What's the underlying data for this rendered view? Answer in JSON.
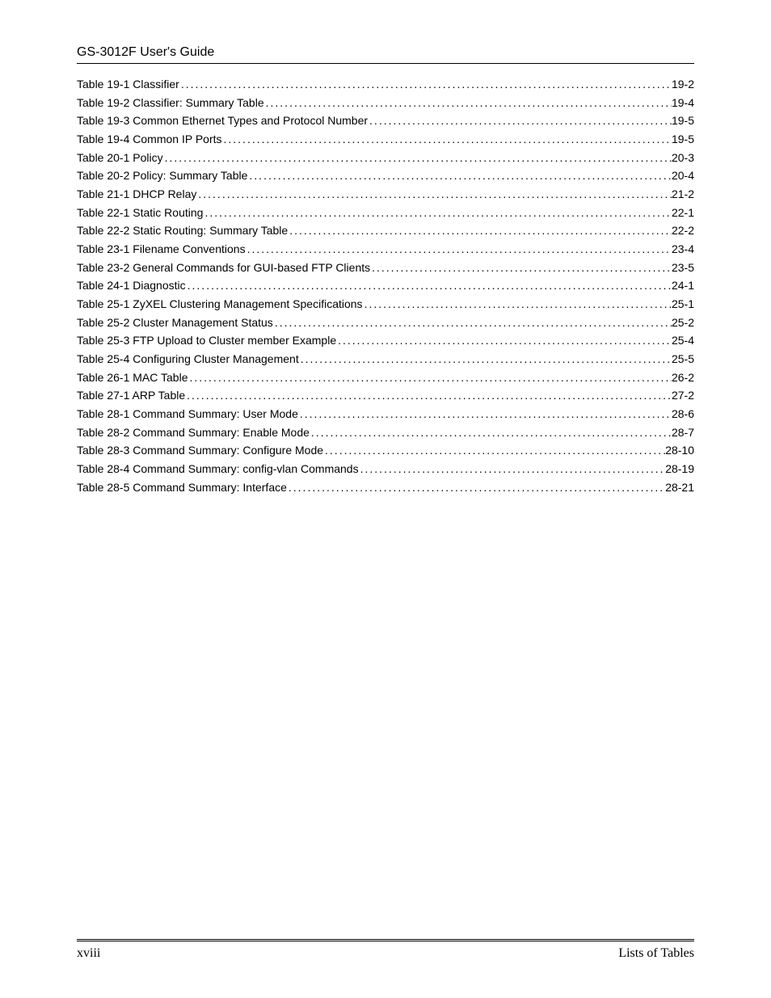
{
  "header_title": "GS-3012F User's Guide",
  "toc_entries": [
    {
      "title": "Table 19-1 Classifier",
      "page": "19-2"
    },
    {
      "title": "Table 19-2 Classifier: Summary Table",
      "page": "19-4"
    },
    {
      "title": "Table 19-3 Common Ethernet Types and Protocol Number",
      "page": "19-5"
    },
    {
      "title": "Table 19-4 Common IP Ports",
      "page": "19-5"
    },
    {
      "title": "Table 20-1 Policy",
      "page": "20-3"
    },
    {
      "title": "Table 20-2 Policy: Summary Table",
      "page": "20-4"
    },
    {
      "title": "Table 21-1 DHCP Relay",
      "page": "21-2"
    },
    {
      "title": "Table 22-1 Static Routing",
      "page": "22-1"
    },
    {
      "title": "Table 22-2 Static Routing: Summary Table",
      "page": "22-2"
    },
    {
      "title": "Table 23-1 Filename Conventions",
      "page": "23-4"
    },
    {
      "title": "Table 23-2 General Commands for GUI-based FTP Clients",
      "page": "23-5"
    },
    {
      "title": "Table 24-1 Diagnostic",
      "page": "24-1"
    },
    {
      "title": "Table 25-1 ZyXEL Clustering Management Specifications",
      "page": "25-1"
    },
    {
      "title": "Table 25-2 Cluster Management Status",
      "page": "25-2"
    },
    {
      "title": "Table 25-3 FTP Upload to Cluster member Example",
      "page": "25-4"
    },
    {
      "title": "Table 25-4 Configuring Cluster Management",
      "page": "25-5"
    },
    {
      "title": "Table 26-1 MAC Table",
      "page": "26-2"
    },
    {
      "title": "Table 27-1 ARP Table",
      "page": "27-2"
    },
    {
      "title": "Table 28-1 Command Summary: User Mode",
      "page": "28-6"
    },
    {
      "title": "Table 28-2 Command Summary: Enable Mode",
      "page": "28-7"
    },
    {
      "title": "Table 28-3 Command Summary: Configure Mode",
      "page": "28-10"
    },
    {
      "title": "Table 28-4 Command Summary: config-vlan Commands",
      "page": "28-19"
    },
    {
      "title": "Table 28-5 Command Summary: Interface",
      "page": "28-21"
    }
  ],
  "footer_left": "xviii",
  "footer_right": "Lists of Tables"
}
